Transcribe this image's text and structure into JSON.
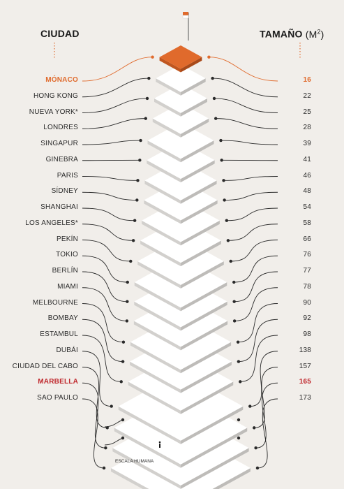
{
  "headers": {
    "city": "CIUDAD",
    "size": "TAMAÑO",
    "unit": "M",
    "unit_exp": "2"
  },
  "rows": [
    {
      "city": "MÓNACO",
      "value": "16",
      "highlight": "#e06a2c"
    },
    {
      "city": "HONG KONG",
      "value": "22"
    },
    {
      "city": "NUEVA YORK*",
      "value": "25"
    },
    {
      "city": "LONDRES",
      "value": "28"
    },
    {
      "city": "SINGAPUR",
      "value": "39"
    },
    {
      "city": "GINEBRA",
      "value": "41"
    },
    {
      "city": "PARIS",
      "value": "46"
    },
    {
      "city": "SÍDNEY",
      "value": "48"
    },
    {
      "city": "SHANGHAI",
      "value": "54"
    },
    {
      "city": "LOS ANGELES*",
      "value": "58"
    },
    {
      "city": "PEKÍN",
      "value": "66"
    },
    {
      "city": "TOKIO",
      "value": "76"
    },
    {
      "city": "BERLÍN",
      "value": "77"
    },
    {
      "city": "MIAMI",
      "value": "78"
    },
    {
      "city": "MELBOURNE",
      "value": "90"
    },
    {
      "city": "BOMBAY",
      "value": "92"
    },
    {
      "city": "ESTAMBUL",
      "value": "98"
    },
    {
      "city": "DUBÁI",
      "value": "138"
    },
    {
      "city": "CIUDAD DEL CABO",
      "value": "157"
    },
    {
      "city": "MARBELLA",
      "value": "165",
      "highlight": "#c0282d"
    },
    {
      "city": "SAO PAULO",
      "value": "173"
    }
  ],
  "scale_label": "ESCALA HUMANA",
  "colors": {
    "background": "#f1eeea",
    "accent": "#e06a2c",
    "marbella": "#c0282d",
    "line": "#2a2a2a",
    "slab_top": "#ffffff",
    "slab_side_left": "#d2d0cd",
    "slab_side_right": "#bebcb9",
    "flag": "#e06a2c"
  }
}
